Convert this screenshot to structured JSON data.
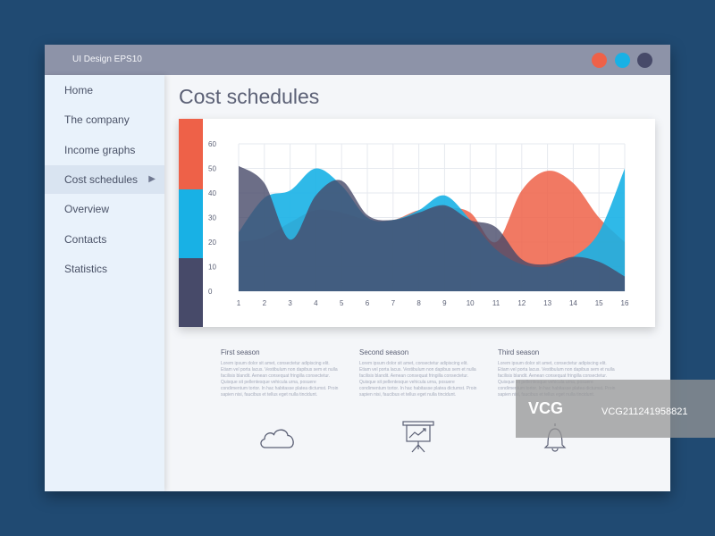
{
  "window": {
    "title": "UI Design EPS10"
  },
  "colors": {
    "red": "#ee6148",
    "blue": "#18b1e5",
    "navy": "#474a69",
    "background": "#204a72"
  },
  "sidebar": {
    "items": [
      {
        "label": "Home"
      },
      {
        "label": "The company"
      },
      {
        "label": "Income graphs"
      },
      {
        "label": "Cost schedules",
        "active": true
      },
      {
        "label": "Overview"
      },
      {
        "label": "Contacts"
      },
      {
        "label": "Statistics"
      }
    ]
  },
  "main": {
    "title": "Cost schedules",
    "seasons": [
      {
        "title": "First season",
        "text": "Lorem ipsum dolor sit amet, consectetur adipiscing elit. Etiam vel porta lacus. Vestibulum non dapibus sem et nulla facilisis blandit. Aenean consequat fringilla consectetur. Quisque sit pellentesque vehicula urna, posuere condimentum tortor. In hac habitasse platea dictumst. Proin sapien nisi, faucibus et tellus eget nulla tincidunt.",
        "icon": "cloud-icon"
      },
      {
        "title": "Second season",
        "text": "Lorem ipsum dolor sit amet, consectetur adipiscing elit. Etiam vel porta lacus. Vestibulum non dapibus sem et nulla facilisis blandit. Aenean consequat fringilla consectetur. Quisque sit pellentesque vehicula urna, posuere condimentum tortor. In hac habitasse platea dictumst. Proin sapien nisi, faucibus et tellus eget nulla tincidunt.",
        "icon": "presentation-chart-icon"
      },
      {
        "title": "Third season",
        "text": "Lorem ipsum dolor sit amet, consectetur adipiscing elit. Etiam vel porta lacus. Vestibulum non dapibus sem et nulla facilisis blandit. Aenean consequat fringilla consectetur. Quisque sit pellentesque vehicula urna, posuere condimentum tortor. In hac habitasse platea dictumst. Proin sapien nisi, faucibus et tellus eget nulla tincidunt.",
        "icon": "bell-icon"
      }
    ]
  },
  "watermark": {
    "logo": "VCG",
    "id": "VCG211241958821"
  },
  "chart_data": {
    "type": "area",
    "x": [
      1,
      2,
      3,
      4,
      5,
      6,
      7,
      8,
      9,
      10,
      11,
      12,
      13,
      14,
      15,
      16
    ],
    "ylim": [
      0,
      60
    ],
    "yticks": [
      0,
      10,
      20,
      30,
      40,
      50,
      60
    ],
    "grid": true,
    "series": [
      {
        "color": "#ee6148",
        "values": [
          20,
          22,
          28,
          33,
          32,
          29,
          29,
          33,
          34,
          32,
          20,
          41,
          49,
          44,
          30,
          20
        ]
      },
      {
        "color": "#18b1e5",
        "values": [
          24,
          38,
          41,
          50,
          43,
          30,
          29,
          33,
          39,
          29,
          17,
          11,
          10,
          14,
          24,
          50
        ]
      },
      {
        "color": "#474a69",
        "values": [
          51,
          44,
          21,
          39,
          45,
          31,
          29,
          32,
          35,
          29,
          26,
          13,
          11,
          14,
          12,
          6
        ]
      }
    ]
  }
}
